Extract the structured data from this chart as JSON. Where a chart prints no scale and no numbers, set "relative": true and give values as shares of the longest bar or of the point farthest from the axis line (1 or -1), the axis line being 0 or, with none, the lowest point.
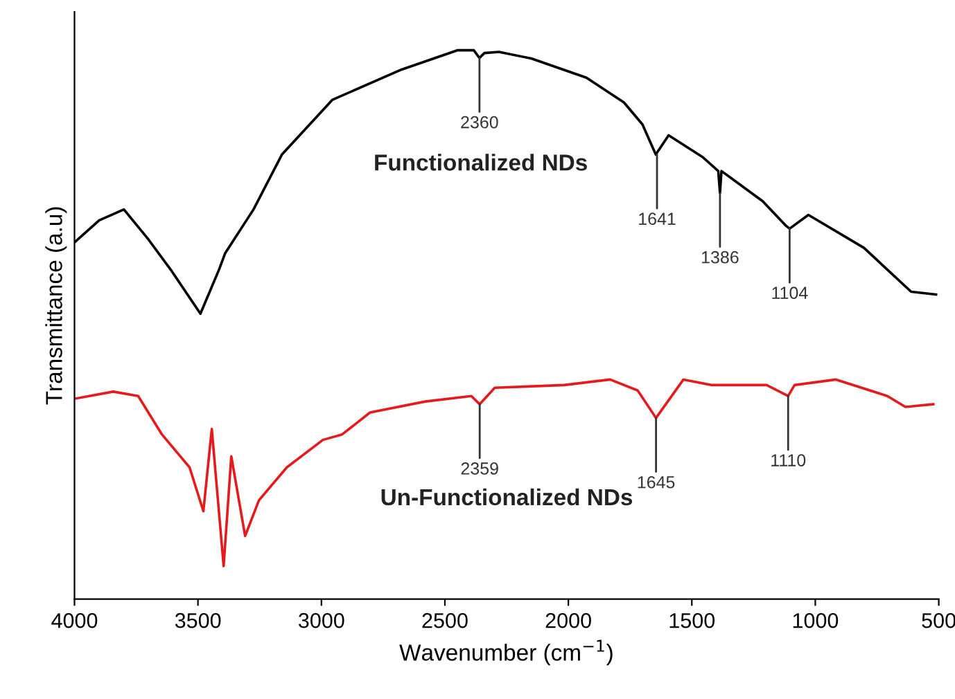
{
  "chart_data": {
    "type": "line",
    "xlabel": "Wavenumber (cm$^{−1}$)",
    "ylabel": "Transmittance (a.u)",
    "relative": true,
    "xlim": [
      4000,
      500
    ],
    "xticks": [
      4000,
      3500,
      3000,
      2500,
      2000,
      1500,
      1000,
      500
    ],
    "grid": false,
    "legend": false,
    "marker": "none",
    "line_style": "solid",
    "series": [
      {
        "name": "Functionalized NDs",
        "color": "#000000",
        "x": [
          4000,
          3900,
          3800,
          3700,
          3610,
          3490,
          3415,
          3390,
          3275,
          3160,
          2955,
          2675,
          2450,
          2383,
          2360,
          2340,
          2281,
          2150,
          1927,
          1775,
          1700,
          1646,
          1594,
          1455,
          1393,
          1386,
          1380,
          1213,
          1118,
          1104,
          1028,
          803,
          612,
          511
        ],
        "values": [
          0.65,
          0.69,
          0.71,
          0.655,
          0.6,
          0.52,
          0.6,
          0.63,
          0.71,
          0.81,
          0.91,
          0.965,
          1.0,
          1.0,
          0.986,
          0.995,
          0.997,
          0.985,
          0.95,
          0.905,
          0.865,
          0.81,
          0.845,
          0.805,
          0.78,
          0.74,
          0.78,
          0.725,
          0.68,
          0.675,
          0.7,
          0.64,
          0.56,
          0.555
        ]
      },
      {
        "name": "Un-Functionalized NDs",
        "color": "#e41a1c",
        "x": [
          4000,
          3843,
          3742,
          3646,
          3534,
          3478,
          3444,
          3396,
          3365,
          3309,
          3253,
          3140,
          2994,
          2916,
          2803,
          2579,
          2393,
          2359,
          2298,
          2017,
          1831,
          1719,
          1645,
          1534,
          1421,
          1197,
          1110,
          1084,
          916,
          708,
          635,
          522
        ],
        "values": [
          0.365,
          0.378,
          0.37,
          0.3,
          0.24,
          0.16,
          0.31,
          0.06,
          0.26,
          0.115,
          0.18,
          0.24,
          0.29,
          0.3,
          0.34,
          0.36,
          0.37,
          0.355,
          0.385,
          0.39,
          0.4,
          0.38,
          0.33,
          0.4,
          0.39,
          0.39,
          0.37,
          0.39,
          0.4,
          0.37,
          0.35,
          0.355
        ]
      }
    ],
    "annotations": [
      {
        "text": "2360",
        "x": 2360,
        "y": 0.986
      },
      {
        "text": "1641",
        "x": 1641,
        "y": 0.81
      },
      {
        "text": "1386",
        "x": 1386,
        "y": 0.74
      },
      {
        "text": "1104",
        "x": 1104,
        "y": 0.675
      },
      {
        "text": "2359",
        "x": 2359,
        "y": 0.355
      },
      {
        "text": "1645",
        "x": 1645,
        "y": 0.33
      },
      {
        "text": "1110",
        "x": 1110,
        "y": 0.37
      }
    ]
  }
}
